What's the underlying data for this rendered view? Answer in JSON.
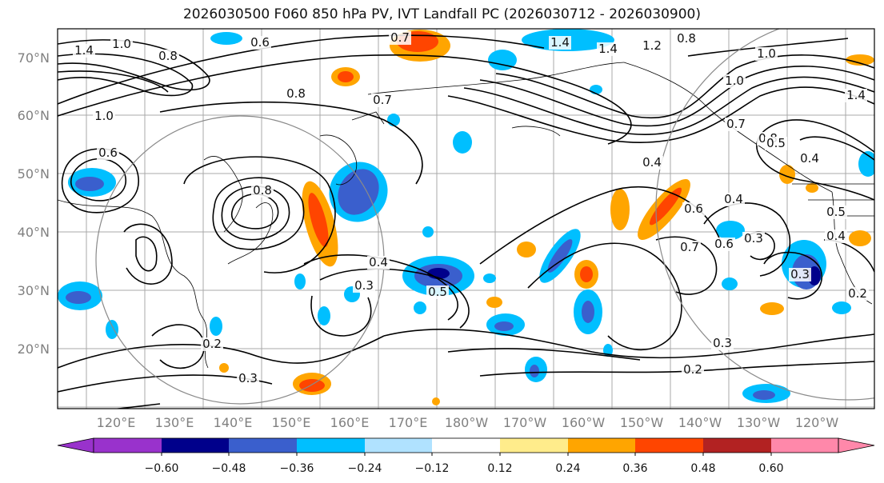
{
  "title": "2026030500 F060 850 hPa PV, IVT Landfall PC (2026030712 - 2026030900)",
  "lat_labels": [
    "70°N",
    "60°N",
    "50°N",
    "40°N",
    "30°N",
    "20°N"
  ],
  "lon_labels": [
    "120°E",
    "130°E",
    "140°E",
    "150°E",
    "160°E",
    "170°E",
    "180°W",
    "170°W",
    "160°W",
    "150°W",
    "140°W",
    "130°W",
    "120°W"
  ],
  "contour_labels": [
    "1.4",
    "1.0",
    "0.8",
    "0.6",
    "0.7",
    "1.4",
    "1.4",
    "1.2",
    "0.8",
    "1.0",
    "1.0",
    "1.4",
    "0.8",
    "0.7",
    "1.0",
    "0.6",
    "0.8",
    "0.4",
    "0.8",
    "0.4",
    "0.6",
    "0.7",
    "0.4",
    "0.5",
    "0.4",
    "0.3",
    "0.5",
    "0.2",
    "0.3",
    "0.3",
    "0.2",
    "0.2",
    "0.3",
    "0.4",
    "0.5",
    "0.6",
    "0.3",
    "0.7"
  ],
  "colorbar": {
    "colors": [
      "#9932cc",
      "#00008b",
      "#3a5fcd",
      "#00bfff",
      "#b0e2ff",
      "#ffffff",
      "#ffec8b",
      "#ffa500",
      "#ff4500",
      "#b22222",
      "#ff88aa"
    ],
    "ticks": [
      "−0.60",
      "−0.48",
      "−0.36",
      "−0.24",
      "−0.12",
      "0.12",
      "0.24",
      "0.36",
      "0.48",
      "0.60"
    ]
  }
}
